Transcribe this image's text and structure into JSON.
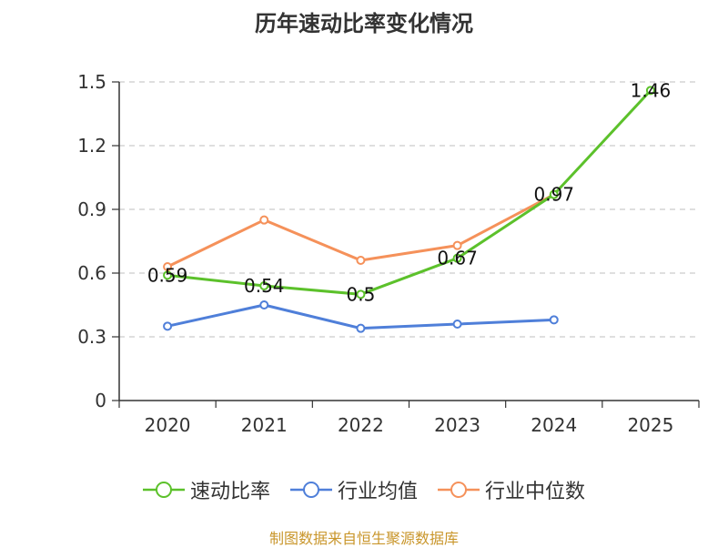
{
  "chart_data": {
    "type": "line",
    "title": "历年速动比率变化情况",
    "categories": [
      "2020",
      "2021",
      "2022",
      "2023",
      "2024",
      "2025"
    ],
    "y_ticks": [
      "0",
      "0.3",
      "0.6",
      "0.9",
      "1.2",
      "1.5"
    ],
    "ylim": [
      0,
      1.5
    ],
    "grid": true,
    "legend_position": "bottom",
    "series": [
      {
        "name": "速动比率",
        "color": "#5cc12b",
        "values": [
          0.59,
          0.54,
          0.5,
          0.67,
          0.97,
          1.46
        ],
        "labels": [
          "0.59",
          "0.54",
          "0.5",
          "0.67",
          "0.97",
          "1.46"
        ]
      },
      {
        "name": "行业均值",
        "color": "#4f7fd9",
        "values": [
          0.35,
          0.45,
          0.34,
          0.36,
          0.38,
          null
        ]
      },
      {
        "name": "行业中位数",
        "color": "#f5915a",
        "values": [
          0.63,
          0.85,
          0.66,
          0.73,
          0.97,
          null
        ]
      }
    ]
  },
  "footer": "制图数据来自恒生聚源数据库"
}
